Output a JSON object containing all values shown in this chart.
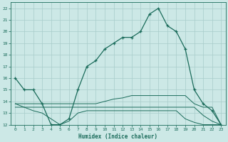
{
  "xlabel": "Humidex (Indice chaleur)",
  "background_color": "#cce8e6",
  "grid_color": "#a8ccca",
  "line_color": "#1a6b5a",
  "xlim": [
    -0.5,
    23.5
  ],
  "ylim": [
    12,
    22.5
  ],
  "xticks": [
    0,
    1,
    2,
    3,
    4,
    5,
    6,
    7,
    8,
    9,
    10,
    11,
    12,
    13,
    14,
    15,
    16,
    17,
    18,
    19,
    20,
    21,
    22,
    23
  ],
  "yticks": [
    12,
    13,
    14,
    15,
    16,
    17,
    18,
    19,
    20,
    21,
    22
  ],
  "series1_x": [
    0,
    1,
    2,
    3,
    4,
    5,
    6,
    7,
    8,
    9,
    10,
    11,
    12,
    13,
    14,
    15,
    16,
    17,
    18,
    19,
    20,
    21,
    22,
    23
  ],
  "series1_y": [
    16.0,
    15.0,
    15.0,
    13.8,
    12.0,
    12.0,
    12.5,
    15.0,
    17.0,
    17.5,
    18.5,
    19.0,
    19.5,
    19.5,
    20.0,
    21.5,
    22.0,
    20.5,
    20.0,
    18.5,
    15.0,
    13.8,
    13.2,
    12.0
  ],
  "series2_x": [
    0,
    1,
    2,
    3,
    4,
    5,
    6,
    7,
    8,
    9,
    10,
    11,
    12,
    13,
    14,
    15,
    16,
    17,
    18,
    19,
    20,
    21,
    22,
    23
  ],
  "series2_y": [
    13.8,
    13.8,
    13.8,
    13.8,
    13.8,
    13.8,
    13.8,
    13.8,
    13.8,
    13.8,
    14.0,
    14.2,
    14.3,
    14.5,
    14.5,
    14.5,
    14.5,
    14.5,
    14.5,
    14.5,
    13.8,
    13.5,
    13.5,
    12.0
  ],
  "series3_x": [
    0,
    1,
    2,
    3,
    4,
    5,
    6,
    7,
    8,
    9,
    10,
    11,
    12,
    13,
    14,
    15,
    16,
    17,
    18,
    19,
    20,
    21,
    22,
    23
  ],
  "series3_y": [
    13.8,
    13.5,
    13.2,
    13.0,
    12.5,
    12.0,
    12.3,
    13.0,
    13.2,
    13.2,
    13.2,
    13.2,
    13.2,
    13.2,
    13.2,
    13.2,
    13.2,
    13.2,
    13.2,
    12.5,
    12.2,
    12.0,
    12.0,
    12.0
  ],
  "series4_x": [
    0,
    1,
    2,
    3,
    4,
    5,
    6,
    7,
    8,
    9,
    10,
    11,
    12,
    13,
    14,
    15,
    16,
    17,
    18,
    19,
    20,
    21,
    22,
    23
  ],
  "series4_y": [
    13.5,
    13.5,
    13.5,
    13.5,
    13.5,
    13.5,
    13.5,
    13.5,
    13.5,
    13.5,
    13.5,
    13.5,
    13.5,
    13.5,
    13.5,
    13.5,
    13.5,
    13.5,
    13.5,
    13.5,
    13.5,
    12.8,
    12.3,
    12.0
  ]
}
